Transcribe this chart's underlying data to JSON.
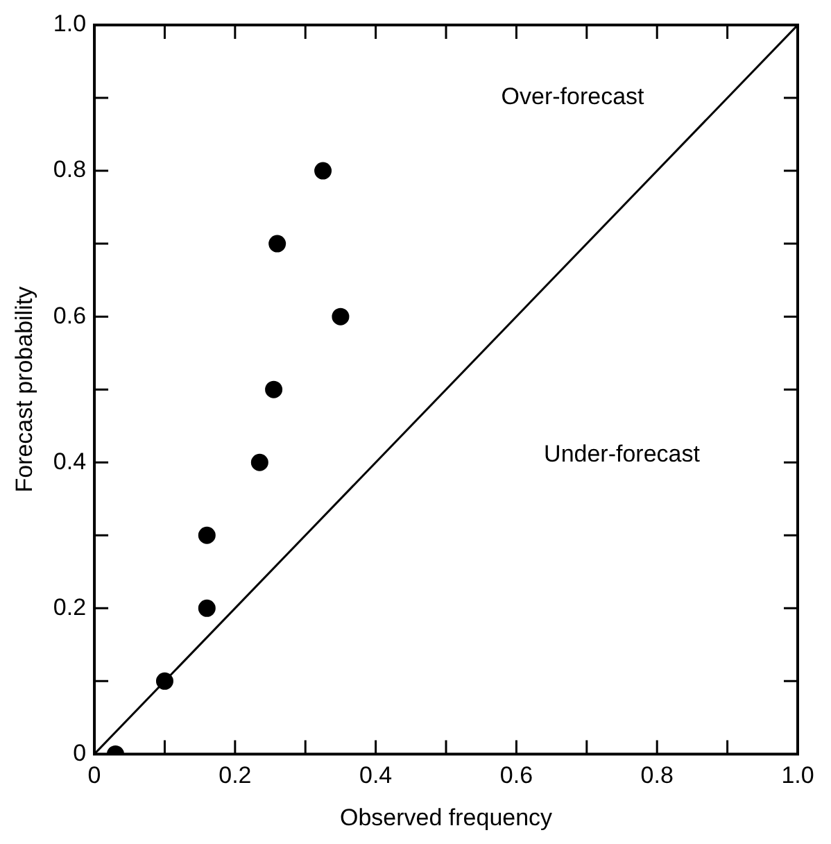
{
  "chart_data": {
    "type": "scatter",
    "xlabel": "Observed frequency",
    "ylabel": "Forecast probability",
    "xlim": [
      0,
      1
    ],
    "ylim": [
      0,
      1
    ],
    "xticks": [
      0,
      {
        "value": 0.1,
        "label": null
      },
      0.2,
      {
        "value": 0.3,
        "label": null
      },
      0.4,
      {
        "value": 0.5,
        "label": null
      },
      0.6,
      {
        "value": 0.7,
        "label": null
      },
      0.8,
      {
        "value": 0.9,
        "label": null
      },
      {
        "value": 1,
        "label": "1.0"
      }
    ],
    "yticks": [
      0,
      {
        "value": 0.1,
        "label": null
      },
      0.2,
      {
        "value": 0.3,
        "label": null
      },
      0.4,
      {
        "value": 0.5,
        "label": null
      },
      0.6,
      {
        "value": 0.7,
        "label": null
      },
      0.8,
      {
        "value": 0.9,
        "label": null
      },
      {
        "value": 1,
        "label": "1.0"
      }
    ],
    "series": [
      {
        "color": "#000000",
        "marker": "circle",
        "x": [
          0.03,
          0.1,
          0.16,
          0.16,
          0.235,
          0.255,
          0.35,
          0.26,
          0.325
        ],
        "values": [
          0,
          0.1,
          0.2,
          0.3,
          0.4,
          0.5,
          0.6,
          0.7,
          0.8
        ]
      },
      {
        "type": "line",
        "color": "#000000",
        "marker": "none",
        "line_style": "solid",
        "x": [
          0,
          1
        ],
        "values": [
          0,
          1
        ]
      }
    ],
    "annotations": [
      "Over-forecast",
      "Under-forecast"
    ],
    "grid": false,
    "legend": false
  }
}
